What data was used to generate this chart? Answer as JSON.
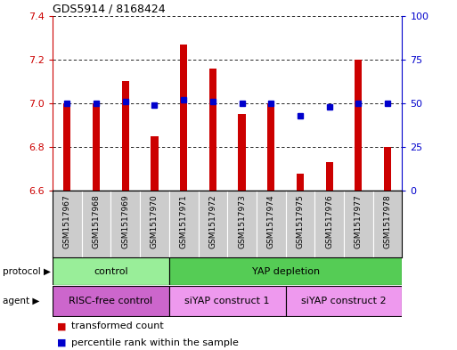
{
  "title": "GDS5914 / 8168424",
  "samples": [
    "GSM1517967",
    "GSM1517968",
    "GSM1517969",
    "GSM1517970",
    "GSM1517971",
    "GSM1517972",
    "GSM1517973",
    "GSM1517974",
    "GSM1517975",
    "GSM1517976",
    "GSM1517977",
    "GSM1517978"
  ],
  "transformed_count": [
    7.0,
    7.0,
    7.1,
    6.85,
    7.27,
    7.16,
    6.95,
    7.0,
    6.68,
    6.73,
    7.2,
    6.8
  ],
  "percentile_rank": [
    50,
    50,
    51,
    49,
    52,
    51,
    50,
    50,
    43,
    48,
    50,
    50
  ],
  "ylim_left": [
    6.6,
    7.4
  ],
  "ylim_right": [
    0,
    100
  ],
  "yticks_left": [
    6.6,
    6.8,
    7.0,
    7.2,
    7.4
  ],
  "yticks_right": [
    0,
    25,
    50,
    75,
    100
  ],
  "bar_color": "#cc0000",
  "dot_color": "#0000cc",
  "bar_width": 0.25,
  "protocol_groups": [
    {
      "label": "control",
      "start": 0,
      "end": 3,
      "color": "#99ee99"
    },
    {
      "label": "YAP depletion",
      "start": 4,
      "end": 11,
      "color": "#55cc55"
    }
  ],
  "agent_groups": [
    {
      "label": "RISC-free control",
      "start": 0,
      "end": 3,
      "color": "#cc66cc"
    },
    {
      "label": "siYAP construct 1",
      "start": 4,
      "end": 7,
      "color": "#ee99ee"
    },
    {
      "label": "siYAP construct 2",
      "start": 8,
      "end": 11,
      "color": "#ee99ee"
    }
  ],
  "legend_red_label": "transformed count",
  "legend_blue_label": "percentile rank within the sample",
  "tick_color_left": "#cc0000",
  "tick_color_right": "#0000cc",
  "background_color": "#ffffff",
  "label_area_bg": "#cccccc",
  "label_divider_color": "#ffffff"
}
